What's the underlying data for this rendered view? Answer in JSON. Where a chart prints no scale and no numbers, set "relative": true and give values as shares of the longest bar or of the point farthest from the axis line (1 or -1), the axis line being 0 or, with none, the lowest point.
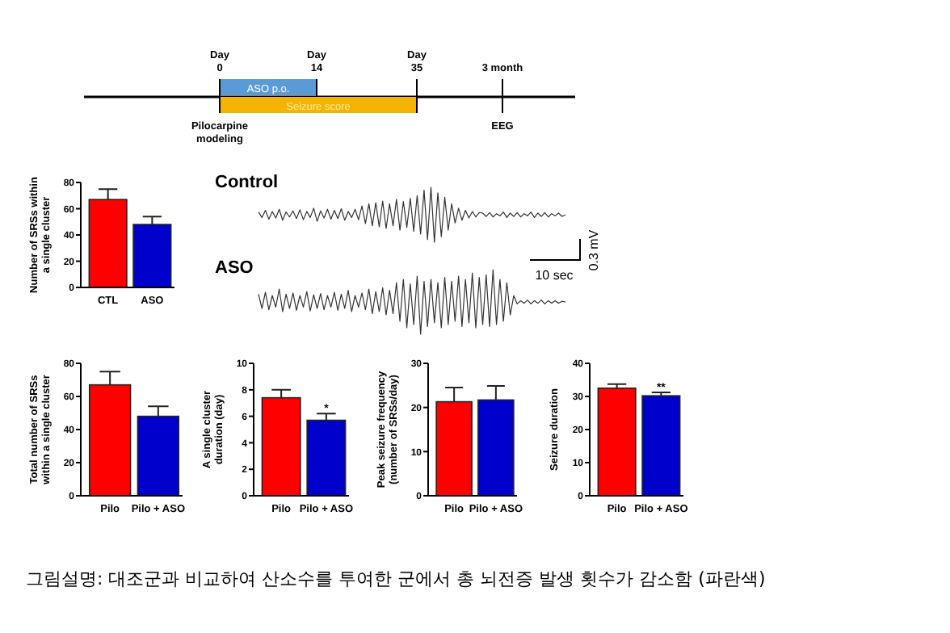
{
  "chart_data": [
    {
      "type": "other",
      "annotations": [
        "Day 0",
        "Day 14",
        "Day 35",
        "3 month",
        "ASO p.o.",
        "Seizure score",
        "Pilocarpine modeling",
        "EEG"
      ]
    },
    {
      "type": "bar",
      "ylabel": "Number of SRSs within a single cluster",
      "categories": [
        "CTL",
        "ASO"
      ],
      "values": [
        67,
        48
      ],
      "colors": [
        "#ff0000",
        "#0000cc"
      ],
      "errors": [
        8,
        6
      ],
      "ylim": [
        0,
        80
      ],
      "yticks": [
        0,
        20,
        40,
        60,
        80
      ]
    },
    {
      "type": "line",
      "title": "Control",
      "relative": true,
      "color": "#333333",
      "categories": [
        null,
        null,
        null,
        null,
        null,
        null,
        null,
        null,
        null,
        null,
        null,
        null,
        null,
        null,
        null,
        null,
        null,
        null,
        null,
        null,
        null,
        null,
        null,
        null,
        null,
        null,
        null,
        null,
        null,
        null,
        null,
        null,
        null,
        null,
        null,
        null,
        null,
        null,
        null,
        null,
        null,
        null,
        null,
        null,
        null,
        null,
        null,
        null,
        null,
        null,
        null,
        null,
        null,
        null,
        null,
        null,
        null,
        null,
        null,
        null,
        null,
        null,
        null,
        null,
        null,
        null,
        null,
        null,
        null,
        null,
        null,
        null,
        null,
        null,
        null,
        null,
        null,
        null,
        null,
        null,
        null,
        null,
        null,
        null,
        null,
        null,
        null,
        null,
        null,
        null
      ],
      "values": [
        0.55,
        0.45,
        0.58,
        0.42,
        0.56,
        0.44,
        0.6,
        0.4,
        0.55,
        0.46,
        0.57,
        0.43,
        0.59,
        0.41,
        0.56,
        0.45,
        0.62,
        0.38,
        0.57,
        0.44,
        0.6,
        0.42,
        0.58,
        0.43,
        0.61,
        0.4,
        0.56,
        0.45,
        0.6,
        0.41,
        0.66,
        0.34,
        0.7,
        0.3,
        0.72,
        0.28,
        0.75,
        0.25,
        0.7,
        0.3,
        0.78,
        0.22,
        0.74,
        0.27,
        0.8,
        0.2,
        0.85,
        0.15,
        0.95,
        0.05,
        1,
        0,
        0.9,
        0.1,
        0.82,
        0.22,
        0.7,
        0.35,
        0.62,
        0.4,
        0.58,
        0.44,
        0.56,
        0.46,
        0.54,
        0.53,
        0.47,
        0.54,
        0.46,
        0.52,
        0.48,
        0.55,
        0.45,
        0.53,
        0.47,
        0.54,
        0.46,
        0.52,
        0.48,
        0.55,
        0.45,
        0.53,
        0.47,
        0.54,
        0.46,
        0.52,
        0.48,
        0.53,
        0.47,
        0.5
      ],
      "annotations": [
        "10 sec",
        "0.3 mV"
      ]
    },
    {
      "type": "line",
      "title": "ASO",
      "relative": true,
      "color": "#333333",
      "categories": [
        null,
        null,
        null,
        null,
        null,
        null,
        null,
        null,
        null,
        null,
        null,
        null,
        null,
        null,
        null,
        null,
        null,
        null,
        null,
        null,
        null,
        null,
        null,
        null,
        null,
        null,
        null,
        null,
        null,
        null,
        null,
        null,
        null,
        null,
        null,
        null,
        null,
        null,
        null,
        null,
        null,
        null,
        null,
        null,
        null,
        null,
        null,
        null,
        null,
        null,
        null,
        null,
        null,
        null,
        null,
        null,
        null,
        null,
        null,
        null,
        null,
        null,
        null,
        null,
        null,
        null,
        null,
        null,
        null,
        null,
        null,
        null,
        null,
        null,
        null,
        null,
        null,
        null,
        null,
        null,
        null,
        null,
        null,
        null,
        null,
        null,
        null,
        null,
        null,
        null
      ],
      "values": [
        0.62,
        0.4,
        0.65,
        0.38,
        0.6,
        0.42,
        0.7,
        0.35,
        0.62,
        0.4,
        0.64,
        0.37,
        0.6,
        0.42,
        0.66,
        0.36,
        0.61,
        0.4,
        0.63,
        0.38,
        0.6,
        0.42,
        0.65,
        0.37,
        0.62,
        0.4,
        0.68,
        0.35,
        0.6,
        0.42,
        0.64,
        0.38,
        0.7,
        0.32,
        0.66,
        0.35,
        0.72,
        0.3,
        0.68,
        0.32,
        0.8,
        0.2,
        0.85,
        0.1,
        0.78,
        0.15,
        0.9,
        0,
        0.82,
        0.12,
        0.85,
        0.18,
        0.8,
        0.1,
        0.88,
        0.15,
        0.82,
        0.2,
        0.9,
        0.12,
        0.85,
        0.18,
        0.95,
        0.1,
        0.88,
        0.15,
        0.92,
        0.12,
        1,
        0.15,
        0.85,
        0.2,
        0.8,
        0.3,
        0.6,
        0.47,
        0.52,
        0.48,
        0.53,
        0.47,
        0.52,
        0.48,
        0.53,
        0.47,
        0.52,
        0.48,
        0.52,
        0.48,
        0.51,
        0.5
      ]
    },
    {
      "type": "bar",
      "ylabel": "Total number of SRSs within a single cluster",
      "categories": [
        "Pilo",
        "Pilo + ASO"
      ],
      "values": [
        67,
        48
      ],
      "colors": [
        "#ff0000",
        "#0000cc"
      ],
      "errors": [
        8,
        6
      ],
      "ylim": [
        0,
        80
      ],
      "yticks": [
        0,
        20,
        40,
        60,
        80
      ]
    },
    {
      "type": "bar",
      "ylabel": "A single cluster duration (day)",
      "categories": [
        "Pilo",
        "Pilo + ASO"
      ],
      "values": [
        7.4,
        5.7
      ],
      "colors": [
        "#ff0000",
        "#0000cc"
      ],
      "errors": [
        0.6,
        0.5
      ],
      "ylim": [
        0,
        10
      ],
      "yticks": [
        0,
        2,
        4,
        6,
        8,
        10
      ],
      "annotations": [
        {
          "text": "*",
          "x": "Pilo + ASO",
          "y": 6.2
        }
      ]
    },
    {
      "type": "bar",
      "ylabel": "Peak seizure frequency (number of SRSs/day)",
      "categories": [
        "Pilo",
        "Pilo + ASO"
      ],
      "values": [
        21.3,
        21.7
      ],
      "colors": [
        "#ff0000",
        "#0000cc"
      ],
      "errors": [
        3.2,
        3.2
      ],
      "ylim": [
        0,
        30
      ],
      "yticks": [
        0,
        10,
        20,
        30
      ]
    },
    {
      "type": "bar",
      "ylabel": "Seizure duration",
      "categories": [
        "Pilo",
        "Pilo + ASO"
      ],
      "values": [
        32.5,
        30.2
      ],
      "colors": [
        "#ff0000",
        "#0000cc"
      ],
      "errors": [
        1.2,
        1
      ],
      "ylim": [
        0,
        40
      ],
      "yticks": [
        0,
        10,
        20,
        30,
        40
      ],
      "annotations": [
        {
          "text": "**",
          "x": "Pilo + ASO",
          "y": 31.2
        }
      ]
    },
    {
      "type": "other",
      "annotations": [
        "그림설명: 대조군과 비교하여 산소수를 투여한 군에서 총 뇌전증 발생 횟수가 감소함 (파란색)"
      ]
    }
  ]
}
